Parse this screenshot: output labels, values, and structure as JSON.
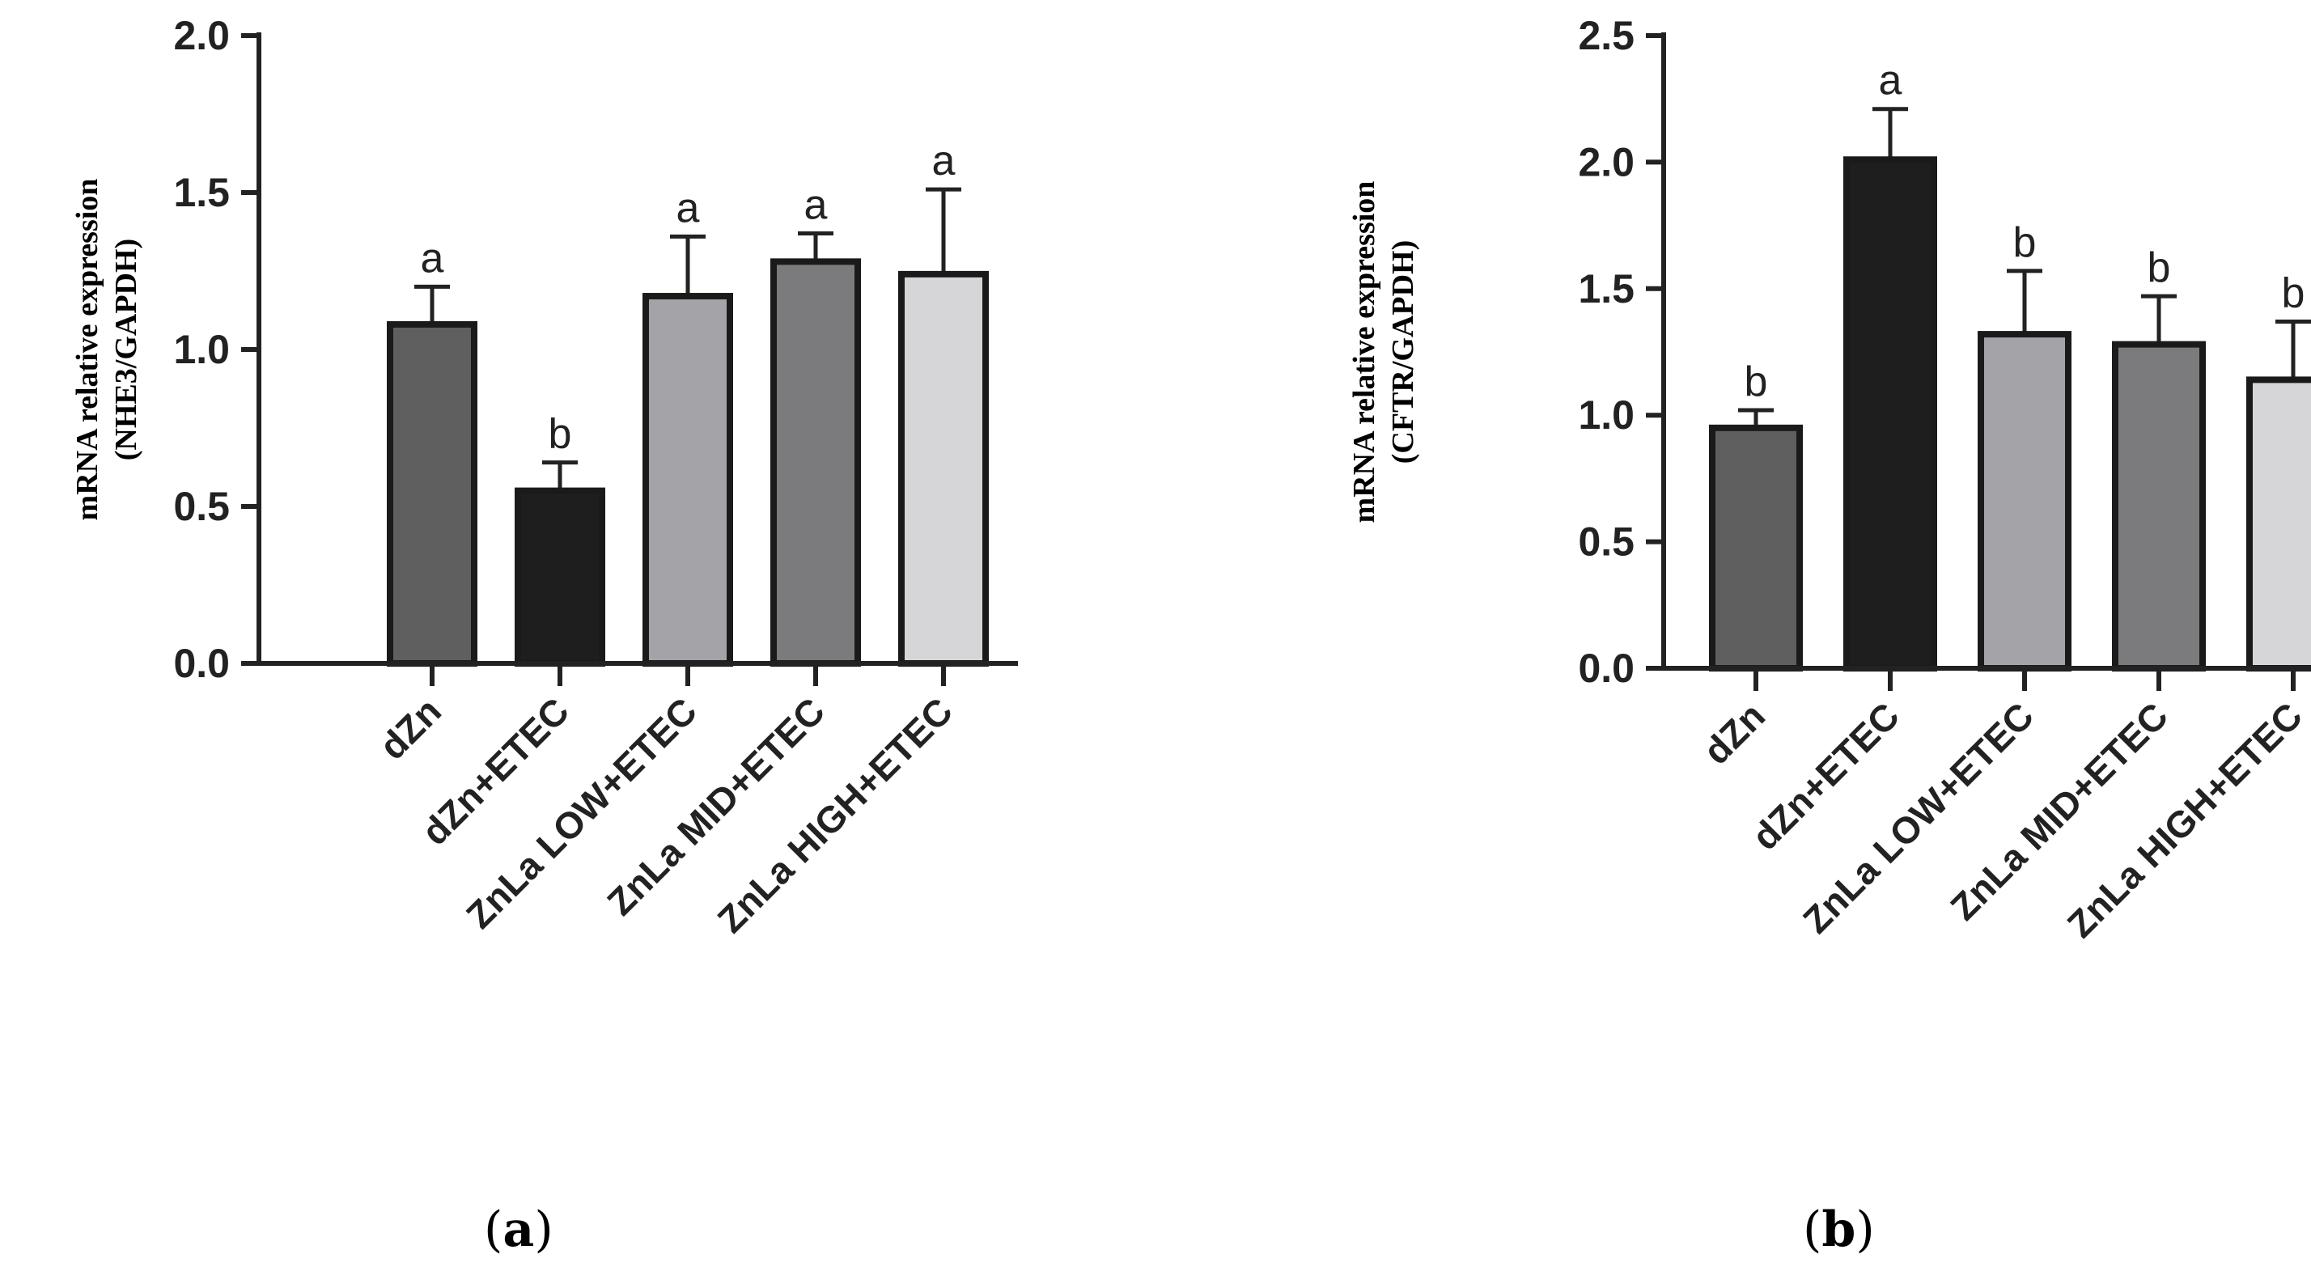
{
  "chart_data": [
    {
      "panel": "a",
      "type": "bar",
      "ylabel_line1": "mRNA relative expression",
      "ylabel_line2": "(NHE3/GAPDH)",
      "ylim": [
        0,
        2.0
      ],
      "yticks": [
        0.0,
        0.5,
        1.0,
        1.5,
        2.0
      ],
      "ytick_labels": [
        "0.0",
        "0.5",
        "1.0",
        "1.5",
        "2.0"
      ],
      "categories": [
        "dZn",
        "dZn+ETEC",
        "ZnLa LOW+ETEC",
        "ZnLa MID+ETEC",
        "ZnLa HIGH+ETEC"
      ],
      "values": [
        1.08,
        0.55,
        1.17,
        1.28,
        1.24
      ],
      "errors": [
        0.12,
        0.09,
        0.19,
        0.09,
        0.27
      ],
      "letters": [
        "a",
        "b",
        "a",
        "a",
        "a"
      ],
      "colors": [
        "#5f5f5f",
        "#1e1e1e",
        "#a3a3a8",
        "#7b7b7d",
        "#d6d6d8"
      ]
    },
    {
      "panel": "b",
      "type": "bar",
      "ylabel_line1": "mRNA relative expression",
      "ylabel_line2": "(CFTR/GAPDH)",
      "ylim": [
        0,
        2.5
      ],
      "yticks": [
        0.0,
        0.5,
        1.0,
        1.5,
        2.0,
        2.5
      ],
      "ytick_labels": [
        "0.0",
        "0.5",
        "1.0",
        "1.5",
        "2.0",
        "2.5"
      ],
      "categories": [
        "dZn",
        "dZn+ETEC",
        "ZnLa LOW+ETEC",
        "ZnLa MID+ETEC",
        "ZnLa HIGH+ETEC"
      ],
      "values": [
        0.95,
        2.01,
        1.32,
        1.28,
        1.14
      ],
      "errors": [
        0.07,
        0.2,
        0.25,
        0.19,
        0.23
      ],
      "letters": [
        "b",
        "a",
        "b",
        "b",
        "b"
      ],
      "colors": [
        "#5f5f5f",
        "#1e1e1e",
        "#a3a3a8",
        "#7b7b7d",
        "#d6d6d8"
      ]
    }
  ],
  "captions": {
    "a_open": "(",
    "a_letter": "a",
    "a_close": ")",
    "b_open": "(",
    "b_letter": "b",
    "b_close": ")"
  }
}
